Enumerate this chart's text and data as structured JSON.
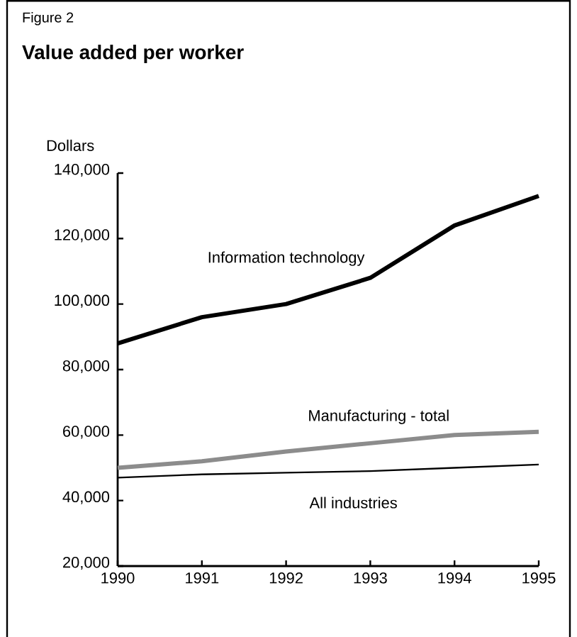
{
  "chart_data": {
    "type": "line",
    "title": "Value added per worker",
    "ylabel": "Dollars",
    "annotations": [
      "Figure 2"
    ],
    "x": [
      1990,
      1991,
      1992,
      1993,
      1994,
      1995
    ],
    "series": [
      {
        "name": "Information technology",
        "color": "#000000",
        "values": [
          88000,
          96000,
          100000,
          108000,
          124000,
          133000
        ]
      },
      {
        "name": "Manufacturing - total",
        "color": "#8c8c8c",
        "values": [
          50000,
          52000,
          55000,
          57500,
          60000,
          61000
        ]
      },
      {
        "name": "All industries",
        "color": "#000000",
        "values": [
          47000,
          48000,
          48500,
          49000,
          50000,
          51000
        ]
      }
    ],
    "xlim": [
      1990,
      1995
    ],
    "ylim": [
      20000,
      140000
    ],
    "xticks": [
      1990,
      1991,
      1992,
      1993,
      1994,
      1995
    ],
    "yticks": [
      {
        "value": 20000,
        "label": "20,000"
      },
      {
        "value": 40000,
        "label": "40,000"
      },
      {
        "value": 60000,
        "label": "60,000"
      },
      {
        "value": 80000,
        "label": "80,000"
      },
      {
        "value": 100000,
        "label": "100,000"
      },
      {
        "value": 120000,
        "label": "120,000"
      },
      {
        "value": 140000,
        "label": "140,000"
      }
    ],
    "grid": false,
    "legend": false,
    "marker": "none",
    "line_style": "solid"
  }
}
